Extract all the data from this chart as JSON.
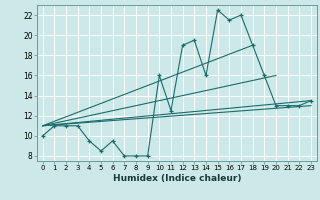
{
  "title": "",
  "xlabel": "Humidex (Indice chaleur)",
  "background_color": "#cce8e8",
  "grid_color": "#ffffff",
  "line_color": "#1a6b6b",
  "xlim": [
    -0.5,
    23.5
  ],
  "ylim": [
    7.5,
    23.0
  ],
  "yticks": [
    8,
    10,
    12,
    14,
    16,
    18,
    20,
    22
  ],
  "xticks": [
    0,
    1,
    2,
    3,
    4,
    5,
    6,
    7,
    8,
    9,
    10,
    11,
    12,
    13,
    14,
    15,
    16,
    17,
    18,
    19,
    20,
    21,
    22,
    23
  ],
  "series1_x": [
    0,
    1,
    2,
    3,
    4,
    5,
    6,
    7,
    8,
    9,
    10,
    11,
    12,
    13,
    14,
    15,
    16,
    17,
    18,
    19,
    20,
    21,
    22,
    23
  ],
  "series1_y": [
    10,
    11,
    11,
    11,
    9.5,
    8.5,
    9.5,
    8,
    8,
    8,
    16,
    12.5,
    19,
    19.5,
    16,
    22.5,
    21.5,
    22,
    19,
    16,
    13,
    13,
    13,
    13.5
  ],
  "line2_x": [
    0,
    23
  ],
  "line2_y": [
    11,
    13
  ],
  "line3_x": [
    0,
    23
  ],
  "line3_y": [
    11,
    13.5
  ],
  "line4_x": [
    0,
    20
  ],
  "line4_y": [
    11,
    16
  ],
  "line5_x": [
    0,
    18
  ],
  "line5_y": [
    11,
    19
  ]
}
